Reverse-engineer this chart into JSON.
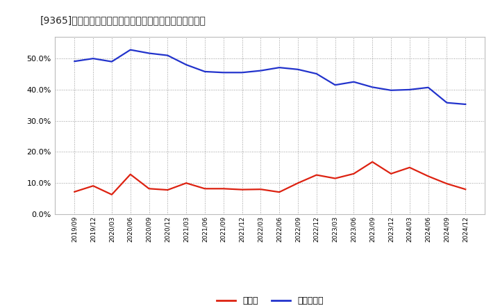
{
  "title": "[9365]　現預金、有利子負債の総資産に対する比率の推移",
  "x_labels": [
    "2019/09",
    "2019/12",
    "2020/03",
    "2020/06",
    "2020/09",
    "2020/12",
    "2021/03",
    "2021/06",
    "2021/09",
    "2021/12",
    "2022/03",
    "2022/06",
    "2022/09",
    "2022/12",
    "2023/03",
    "2023/06",
    "2023/09",
    "2023/12",
    "2024/03",
    "2024/06",
    "2024/09",
    "2024/12"
  ],
  "cash": [
    0.072,
    0.091,
    0.063,
    0.128,
    0.082,
    0.078,
    0.1,
    0.082,
    0.082,
    0.079,
    0.08,
    0.071,
    0.1,
    0.126,
    0.115,
    0.13,
    0.168,
    0.13,
    0.15,
    0.122,
    0.098,
    0.08
  ],
  "debt": [
    0.491,
    0.5,
    0.49,
    0.528,
    0.517,
    0.51,
    0.48,
    0.458,
    0.455,
    0.455,
    0.461,
    0.471,
    0.465,
    0.451,
    0.415,
    0.425,
    0.408,
    0.398,
    0.4,
    0.407,
    0.358,
    0.353
  ],
  "cash_color": "#dd2211",
  "debt_color": "#2233cc",
  "background_color": "#ffffff",
  "plot_bg_color": "#ffffff",
  "grid_color": "#999999",
  "legend_cash": "現預金",
  "legend_debt": "有利子負債",
  "ylim": [
    0.0,
    0.57
  ],
  "yticks": [
    0.0,
    0.1,
    0.2,
    0.3,
    0.4,
    0.5
  ],
  "line_width": 1.6
}
